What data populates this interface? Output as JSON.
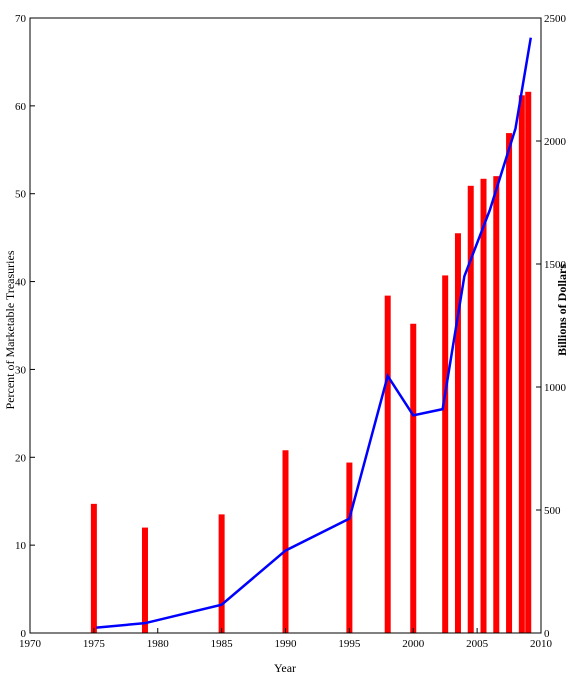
{
  "chart_data": {
    "type": "bar_line",
    "x_label": "Year",
    "y_label": "Percent of Marketable Treasuries",
    "y2_label": "Billions of Dollars",
    "xlim": [
      1970,
      2010
    ],
    "xticks": [
      1970,
      1975,
      1980,
      1985,
      1990,
      1995,
      2000,
      2005,
      2010
    ],
    "ylim": [
      0,
      70
    ],
    "yticks": [
      0,
      10,
      20,
      30,
      40,
      50,
      60,
      70
    ],
    "y2lim": [
      0,
      2500
    ],
    "y2ticks": [
      0,
      500,
      1000,
      1500,
      2000,
      2500
    ],
    "series": [
      {
        "type": "bar",
        "color": "#ff0000",
        "x": [
          1975,
          1979,
          1985,
          1990,
          1995,
          1998,
          2000,
          2002.5,
          2003.5,
          2004.5,
          2005.5,
          2006.5,
          2007.5,
          2008.5,
          2009
        ],
        "values": [
          14.7,
          12.0,
          13.5,
          20.8,
          19.4,
          38.4,
          35.2,
          40.7,
          45.5,
          50.9,
          51.7,
          52.0,
          56.9,
          61.2,
          61.6
        ]
      },
      {
        "type": "line",
        "axis": "y2",
        "color": "#0000ff",
        "x": [
          1975.2,
          1979,
          1985,
          1990,
          1995,
          1998,
          2000,
          2002.3,
          2004,
          2006,
          2008,
          2009.2
        ],
        "values": [
          22,
          40,
          115,
          335,
          465,
          1045,
          885,
          910,
          1450,
          1720,
          2050,
          2420
        ]
      }
    ]
  }
}
